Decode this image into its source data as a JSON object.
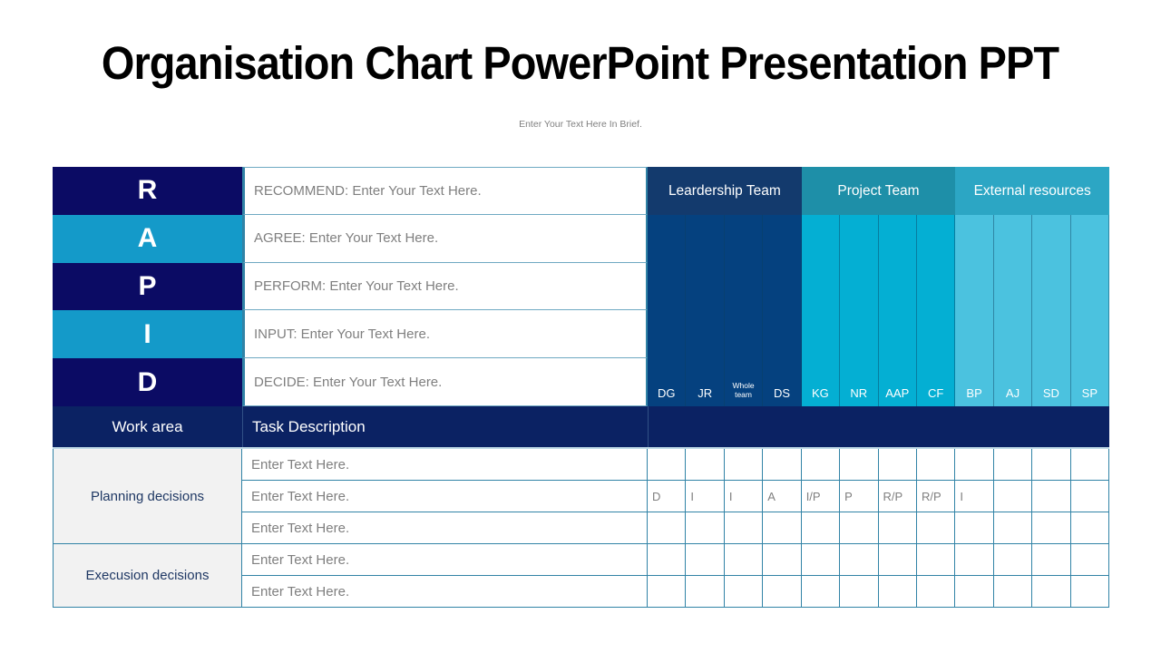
{
  "slide": {
    "title": "Organisation Chart PowerPoint Presentation PPT",
    "subtitle": "Enter Your Text Here In Brief."
  },
  "rapid": {
    "rows": [
      {
        "letter": "R",
        "description": "RECOMMEND: Enter Your Text Here."
      },
      {
        "letter": "A",
        "description": "AGREE: Enter Your Text Here."
      },
      {
        "letter": "P",
        "description": "PERFORM: Enter Your Text Here."
      },
      {
        "letter": "I",
        "description": "INPUT: Enter Your Text Here."
      },
      {
        "letter": "D",
        "description": "DECIDE: Enter Your Text Here."
      }
    ]
  },
  "teams": {
    "groups": [
      {
        "name": "Leardership Team",
        "members": [
          "DG",
          "JR",
          "Whole team",
          "DS"
        ]
      },
      {
        "name": "Project Team",
        "members": [
          "KG",
          "NR",
          "AAP",
          "CF"
        ]
      },
      {
        "name": "External resources",
        "members": [
          "BP",
          "AJ",
          "SD",
          "SP"
        ]
      }
    ]
  },
  "work_table": {
    "headers": {
      "work_area": "Work area",
      "task": "Task Description"
    },
    "areas": [
      {
        "name": "Planning decisions",
        "tasks": [
          "Enter Text Here.",
          "Enter Text Here.",
          "Enter Text Here."
        ]
      },
      {
        "name": "Execusion decisions",
        "tasks": [
          "Enter Text Here.",
          "Enter Text Here."
        ]
      }
    ],
    "matrix": [
      [
        "",
        "",
        "",
        "",
        "",
        "",
        "",
        "",
        "",
        "",
        "",
        ""
      ],
      [
        "D",
        "I",
        "I",
        "A",
        "I/P",
        "P",
        "R/P",
        "R/P",
        "I",
        "",
        "",
        ""
      ],
      [
        "",
        "",
        "",
        "",
        "",
        "",
        "",
        "",
        "",
        "",
        "",
        ""
      ],
      [
        "",
        "",
        "",
        "",
        "",
        "",
        "",
        "",
        "",
        "",
        "",
        ""
      ],
      [
        "",
        "",
        "",
        "",
        "",
        "",
        "",
        "",
        "",
        "",
        "",
        ""
      ]
    ]
  },
  "colors": {
    "navy_letter": "#0B0B64",
    "blue_letter": "#149AC9",
    "leadership_header": "#133A6D",
    "leadership_column": "#05417F",
    "project_header": "#1E8FA8",
    "project_column": "#04AFD3",
    "external_header": "#2CA6C4",
    "external_column": "#4BC2DF",
    "work_area_band": "#0B2263",
    "grid_border": "#3183A6",
    "area_label_bg": "#F2F2F2",
    "area_label_text": "#1F3864",
    "placeholder_text": "#7F7F7F"
  }
}
